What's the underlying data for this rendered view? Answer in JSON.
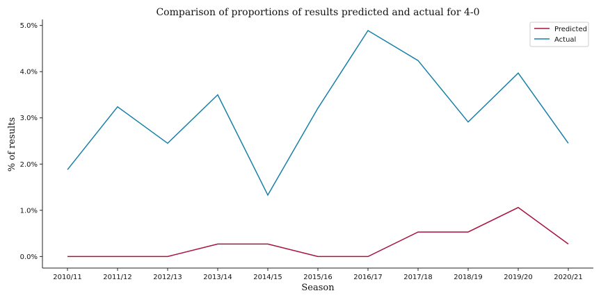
{
  "chart_data": {
    "type": "line",
    "title": "Comparison of proportions of results predicted and actual for 4-0",
    "xlabel": "Season",
    "ylabel": "% of results",
    "categories": [
      "2010/11",
      "2011/12",
      "2012/13",
      "2013/14",
      "2014/15",
      "2015/16",
      "2016/17",
      "2017/18",
      "2018/19",
      "2019/20",
      "2020/21"
    ],
    "ylim": [
      -0.25,
      5.13
    ],
    "yticks": [
      0,
      1,
      2,
      3,
      4,
      5
    ],
    "ytick_labels": [
      "0.0%",
      "1.0%",
      "2.0%",
      "3.0%",
      "4.0%",
      "5.0%"
    ],
    "grid": false,
    "legend_position": "top-right",
    "series": [
      {
        "name": "Predicted",
        "color": "#a8123e",
        "values": [
          0.0,
          0.0,
          0.0,
          0.27,
          0.27,
          0.0,
          0.0,
          0.53,
          0.53,
          1.06,
          0.27
        ]
      },
      {
        "name": "Actual",
        "color": "#1a7fa8",
        "values": [
          1.88,
          3.24,
          2.45,
          3.5,
          1.33,
          3.21,
          4.89,
          4.24,
          2.91,
          3.97,
          2.45
        ]
      }
    ]
  }
}
